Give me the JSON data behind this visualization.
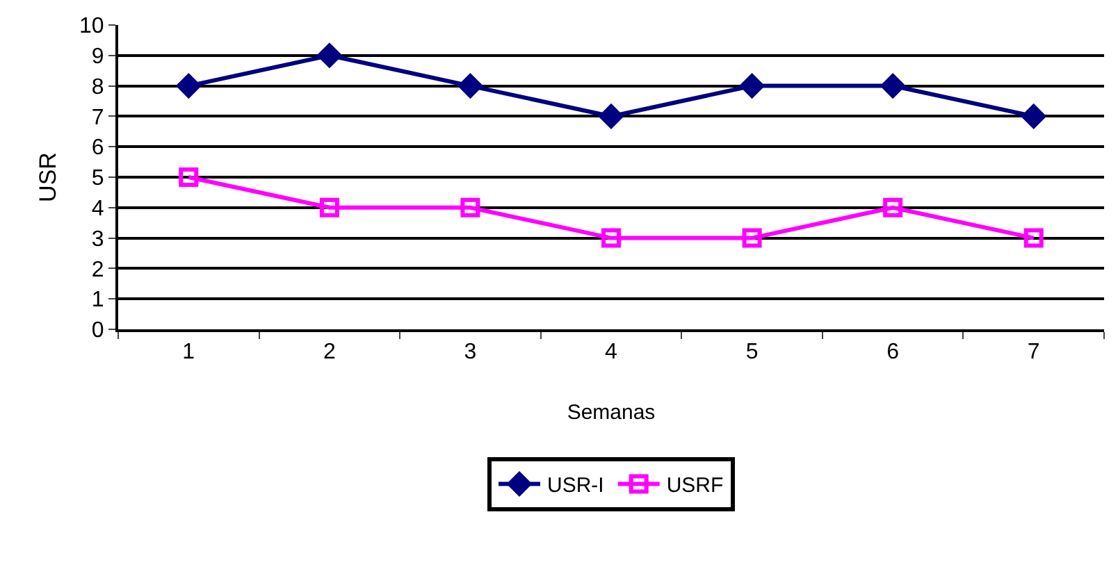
{
  "chart_data": {
    "type": "line",
    "xlabel": "Semanas",
    "ylabel": "USR",
    "categories": [
      "1",
      "2",
      "3",
      "4",
      "5",
      "6",
      "7"
    ],
    "series": [
      {
        "name": "USR-I",
        "color": "#000080",
        "marker": "diamond",
        "values": [
          8,
          9,
          8,
          7,
          8,
          8,
          7
        ]
      },
      {
        "name": "USRF",
        "color": "#ff00ff",
        "marker": "square",
        "values": [
          5,
          4,
          4,
          3,
          3,
          4,
          3
        ]
      }
    ],
    "ylim": [
      0,
      10
    ],
    "yticks": [
      0,
      1,
      2,
      3,
      4,
      5,
      6,
      7,
      8,
      9,
      10
    ],
    "grid": "y",
    "legend": "bottom",
    "line_style": "solid"
  }
}
